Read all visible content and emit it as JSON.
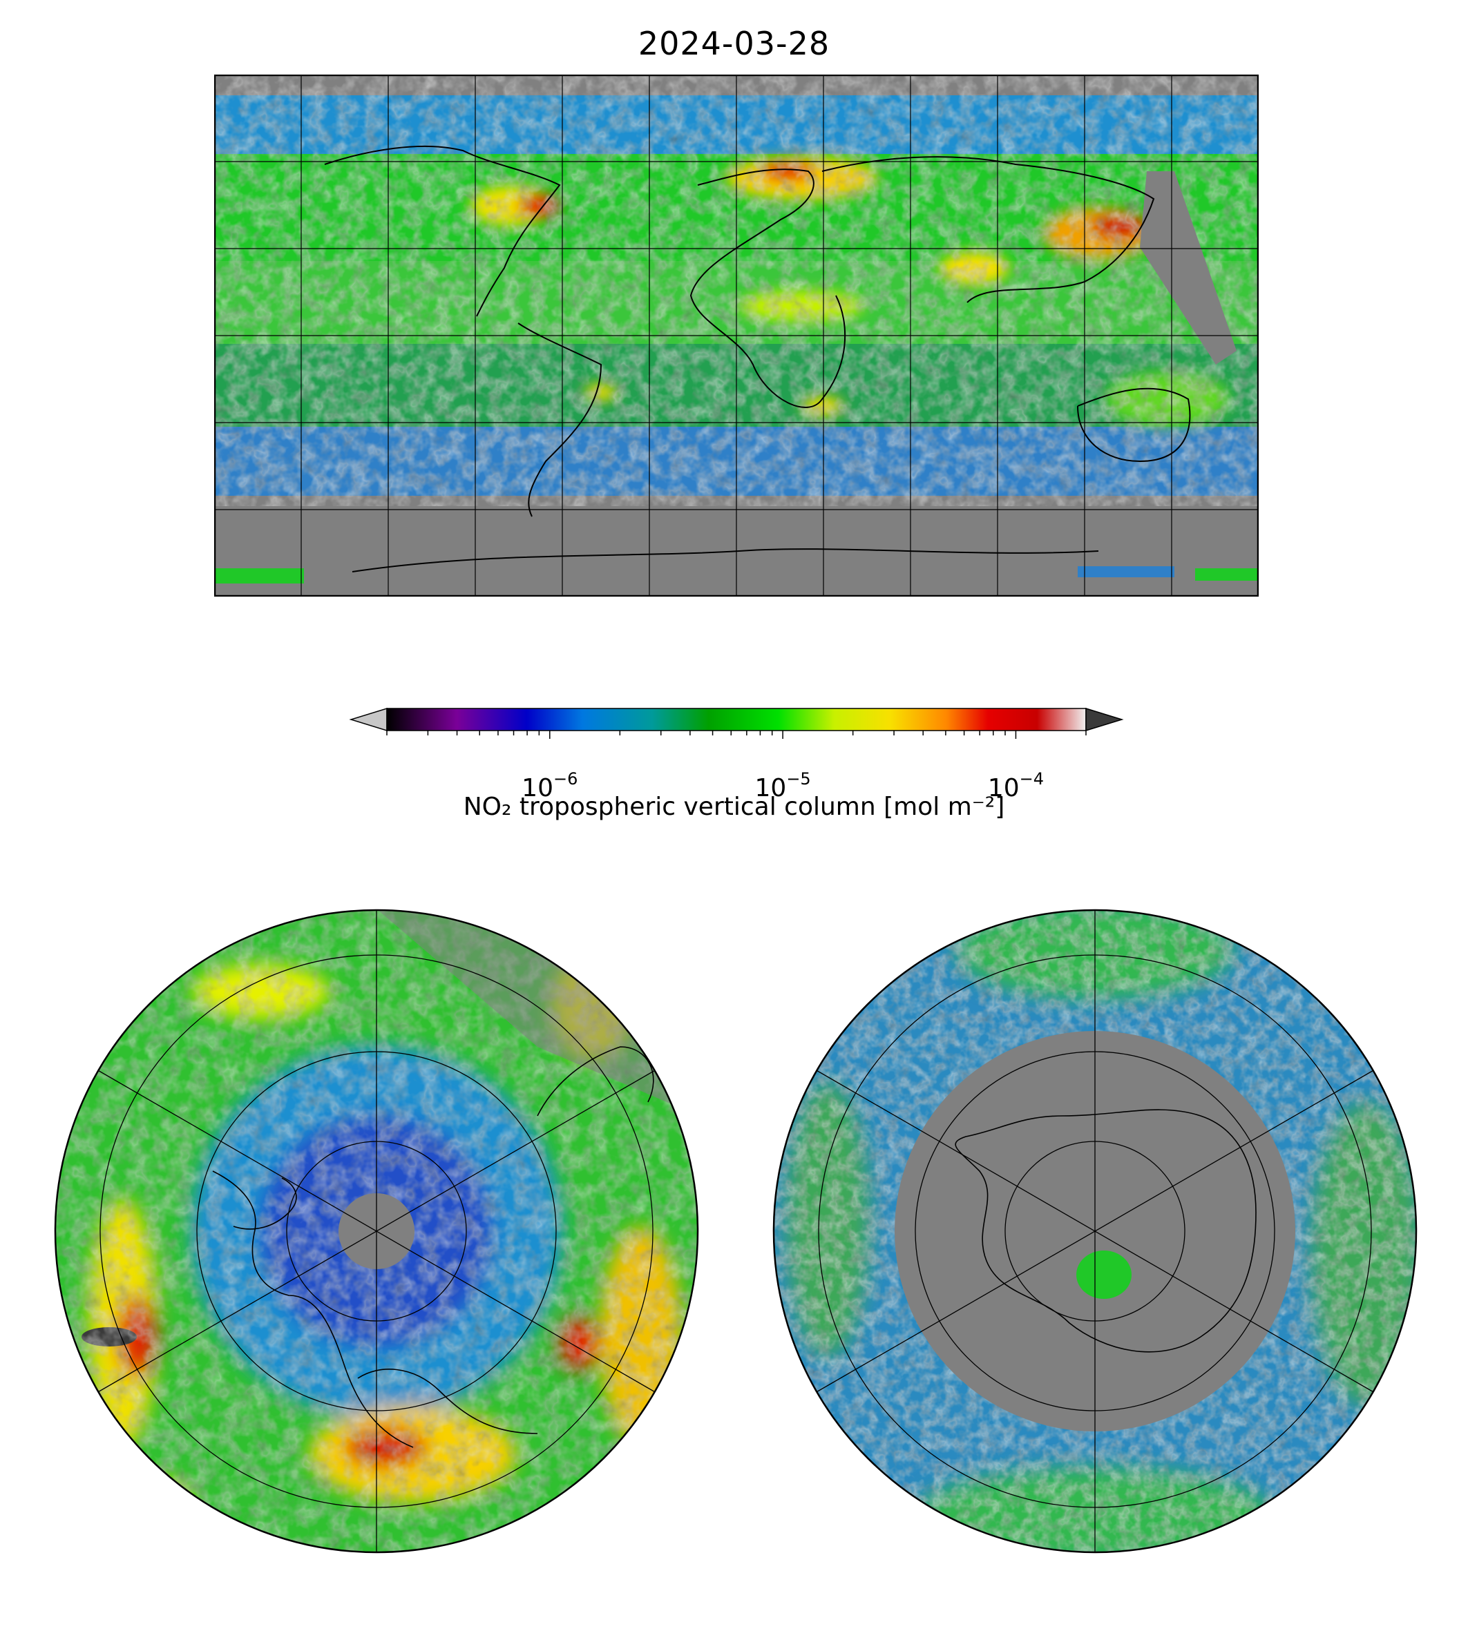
{
  "title": "2024-03-28",
  "colorbar": {
    "label": "NO₂ tropospheric vertical column [mol m⁻²]",
    "scale": "log",
    "range": [
      2e-07,
      0.0002
    ],
    "extend": "both",
    "ticks": [
      {
        "base": "10",
        "exp": "−6",
        "value": 1e-06
      },
      {
        "base": "10",
        "exp": "−5",
        "value": 1e-05
      },
      {
        "base": "10",
        "exp": "−4",
        "value": 0.0001
      }
    ],
    "colors": [
      "#000000",
      "#7a0098",
      "#0000c8",
      "#0078e0",
      "#009a9a",
      "#00a000",
      "#00e000",
      "#c8f000",
      "#f8e000",
      "#ff8800",
      "#e60000",
      "#c80000",
      "#f0f0f0"
    ],
    "under_color": "#c8c8c8",
    "over_color": "#3a3a3a"
  },
  "maps": {
    "global": {
      "projection": "plate-carree",
      "missing_color": "#808080",
      "gridlines": "30-degree"
    },
    "north_polar": {
      "projection": "north-polar-stereographic",
      "missing_color": "#808080"
    },
    "south_polar": {
      "projection": "south-polar-stereographic",
      "missing_color": "#808080"
    }
  }
}
